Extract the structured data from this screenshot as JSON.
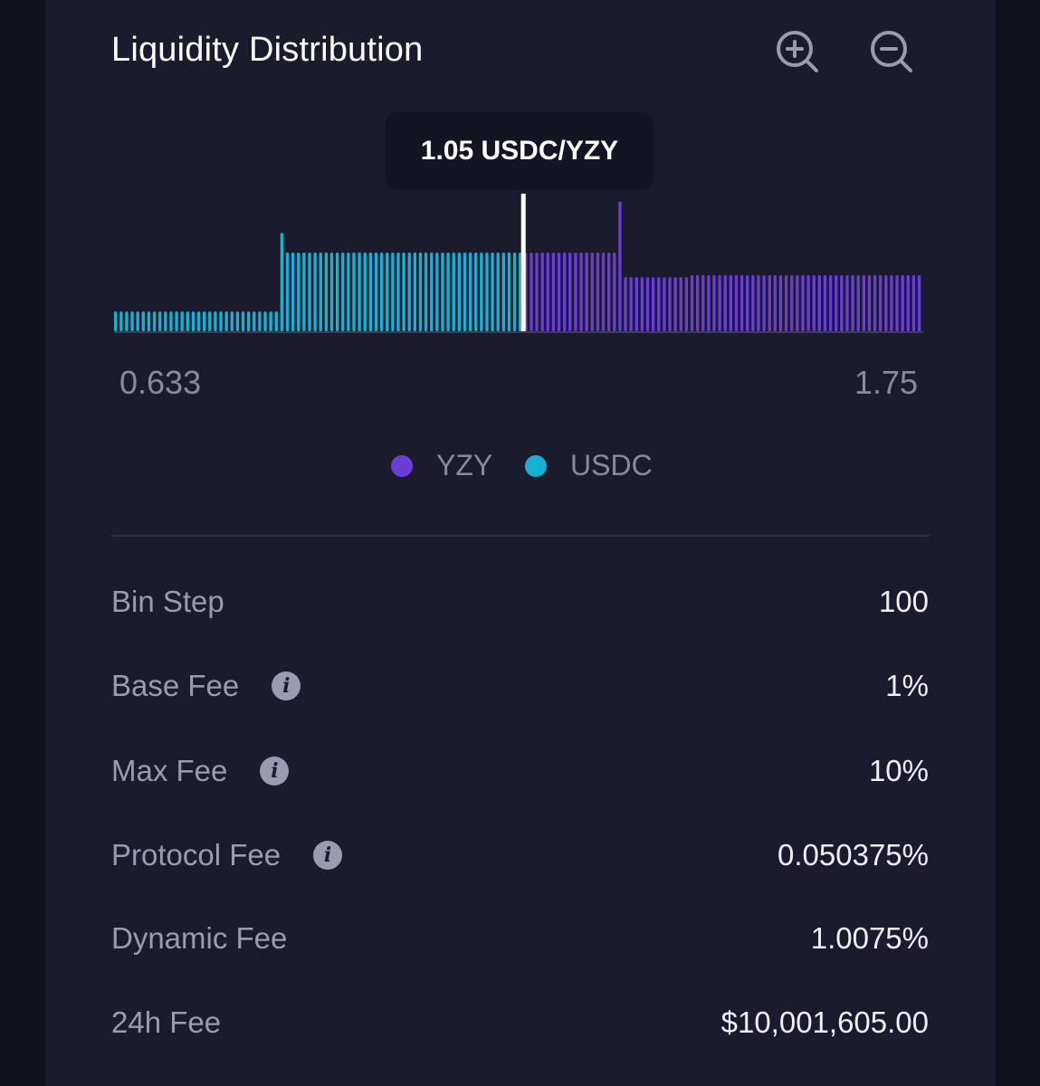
{
  "header": {
    "title": "Liquidity Distribution",
    "zoom_in_icon": "zoom-in-icon",
    "zoom_out_icon": "zoom-out-icon"
  },
  "colors": {
    "yzy": "#6a3ed6",
    "usdc": "#17b1d4",
    "active_line": "#ffffff"
  },
  "chart_data": {
    "type": "bar",
    "active_price_label": "1.05 USDC/YZY",
    "x_min_label": "0.633",
    "x_max_label": "1.75",
    "legend": [
      {
        "name": "YZY",
        "color": "#6a3ed6"
      },
      {
        "name": "USDC",
        "color": "#17b1d4"
      }
    ],
    "series": [
      {
        "name": "USDC",
        "values": [
          20,
          20,
          20,
          20,
          20,
          20,
          20,
          20,
          20,
          20,
          20,
          20,
          20,
          20,
          20,
          20,
          20,
          20,
          20,
          20,
          20,
          20,
          20,
          20,
          20,
          20,
          20,
          20,
          20,
          20,
          100,
          80,
          80,
          80,
          80,
          80,
          80,
          80,
          80,
          80,
          80,
          80,
          80,
          80,
          80,
          80,
          80,
          80,
          80,
          80,
          80,
          80,
          80,
          80,
          80,
          80,
          80,
          80,
          80,
          80,
          80,
          80,
          80,
          80,
          80,
          80,
          80,
          80,
          80,
          80,
          80,
          80,
          80,
          80
        ]
      },
      {
        "name": "YZY",
        "values": [
          80,
          80,
          80,
          80,
          80,
          80,
          80,
          80,
          80,
          80,
          80,
          80,
          80,
          80,
          80,
          80,
          80,
          132,
          55,
          55,
          55,
          55,
          55,
          55,
          55,
          55,
          55,
          55,
          55,
          55,
          57,
          57,
          57,
          57,
          57,
          57,
          57,
          57,
          57,
          57,
          57,
          57,
          57,
          57,
          57,
          57,
          57,
          57,
          57,
          57,
          57,
          57,
          57,
          57,
          57,
          57,
          57,
          57,
          57,
          57,
          57,
          57,
          57,
          57,
          57,
          57,
          57,
          57,
          57,
          57,
          57,
          57
        ]
      }
    ],
    "ylim": [
      0,
      140
    ]
  },
  "stats": [
    {
      "label": "Bin Step",
      "value": "100",
      "info": false
    },
    {
      "label": "Base Fee",
      "value": "1%",
      "info": true
    },
    {
      "label": "Max Fee",
      "value": "10%",
      "info": true
    },
    {
      "label": "Protocol Fee",
      "value": "0.050375%",
      "info": true
    },
    {
      "label": "Dynamic Fee",
      "value": "1.0075%",
      "info": false
    },
    {
      "label": "24h Fee",
      "value": "$10,001,605.00",
      "info": false
    }
  ],
  "info_icon": "info-icon"
}
